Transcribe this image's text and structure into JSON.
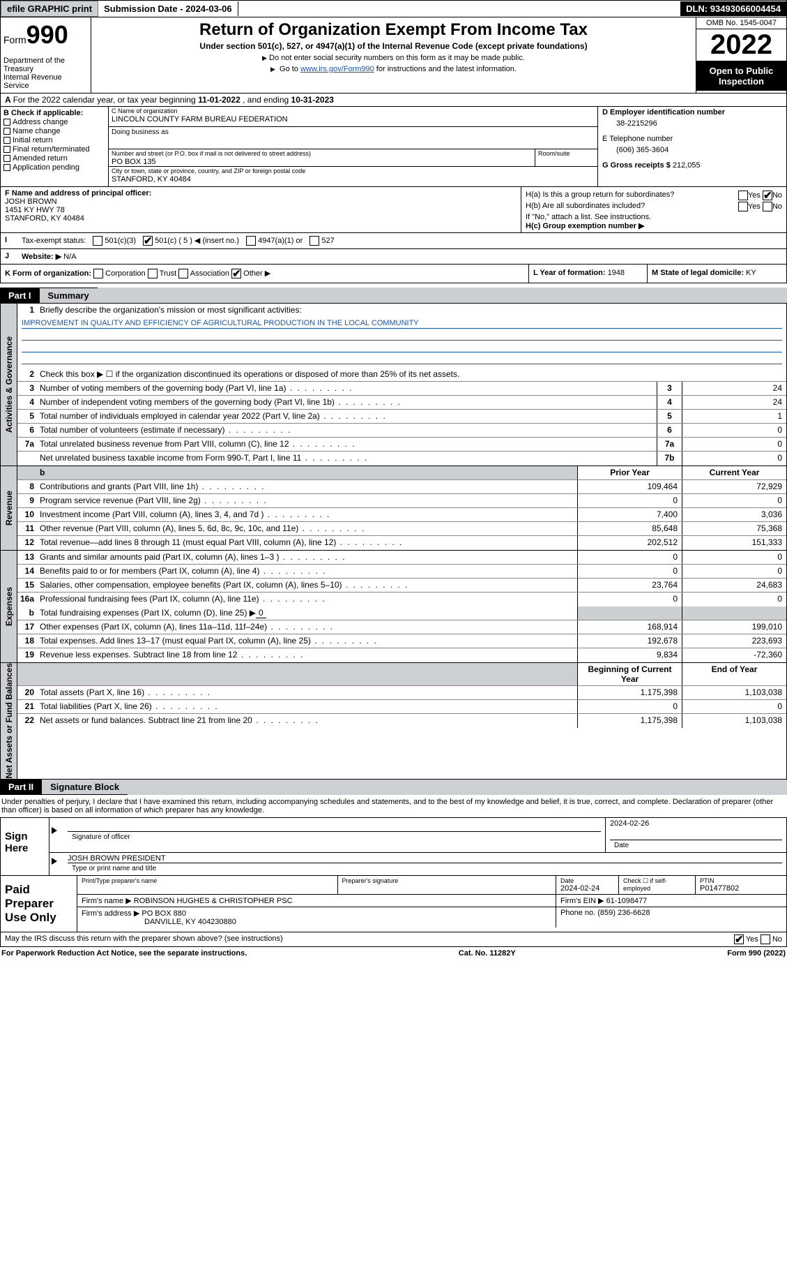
{
  "topbar": {
    "efile": "efile GRAPHIC print",
    "submission_label": "Submission Date - ",
    "submission_date": "2024-03-06",
    "dln_label": "DLN: ",
    "dln": "93493066004454"
  },
  "header": {
    "form_word": "Form",
    "form_no": "990",
    "dept": "Department of the Treasury",
    "irs": "Internal Revenue Service",
    "title": "Return of Organization Exempt From Income Tax",
    "sub": "Under section 501(c), 527, or 4947(a)(1) of the Internal Revenue Code (except private foundations)",
    "note1": "Do not enter social security numbers on this form as it may be made public.",
    "note2_a": "Go to ",
    "note2_link": "www.irs.gov/Form990",
    "note2_b": " for instructions and the latest information.",
    "omb": "OMB No. 1545-0047",
    "year": "2022",
    "open": "Open to Public Inspection"
  },
  "row_a": {
    "text_a": "For the 2022 calendar year, or tax year beginning ",
    "begin": "11-01-2022",
    "text_b": " , and ending ",
    "end": "10-31-2023"
  },
  "col_b": {
    "label": "B Check if applicable:",
    "items": [
      "Address change",
      "Name change",
      "Initial return",
      "Final return/terminated",
      "Amended return",
      "Application pending"
    ]
  },
  "col_c": {
    "name_lbl": "C Name of organization",
    "name": "LINCOLN COUNTY FARM BUREAU FEDERATION",
    "dba_lbl": "Doing business as",
    "addr_lbl": "Number and street (or P.O. box if mail is not delivered to street address)",
    "addr": "PO BOX 135",
    "room_lbl": "Room/suite",
    "city_lbl": "City or town, state or province, country, and ZIP or foreign postal code",
    "city": "STANFORD, KY  40484"
  },
  "col_d": {
    "ein_lbl": "D Employer identification number",
    "ein": "38-2215296",
    "phone_lbl": "E Telephone number",
    "phone": "(606) 365-3604",
    "gross_lbl": "G Gross receipts $ ",
    "gross": "212,055"
  },
  "col_f": {
    "lbl": "F Name and address of principal officer:",
    "name": "JOSH BROWN",
    "addr1": "1451 KY HWY 78",
    "addr2": "STANFORD, KY  40484"
  },
  "col_h": {
    "ha_lbl": "H(a)  Is this a group return for subordinates?",
    "hb_lbl": "H(b)  Are all subordinates included?",
    "hb_note": "If \"No,\" attach a list. See instructions.",
    "hc_lbl": "H(c)  Group exemption number ▶",
    "yes": "Yes",
    "no": "No"
  },
  "row_i": {
    "lbl": "Tax-exempt status:",
    "o1": "501(c)(3)",
    "o2": "501(c) ( 5 ) ◀ (insert no.)",
    "o3": "4947(a)(1) or",
    "o4": "527"
  },
  "row_j": {
    "lbl": "Website: ▶",
    "val": "N/A"
  },
  "row_k": {
    "lbl": "K Form of organization:",
    "opts": [
      "Corporation",
      "Trust",
      "Association",
      "Other ▶"
    ],
    "l_lbl": "L Year of formation: ",
    "l_val": "1948",
    "m_lbl": "M State of legal domicile: ",
    "m_val": "KY"
  },
  "part1": {
    "num": "Part I",
    "title": "Summary"
  },
  "sections": {
    "gov": "Activities & Governance",
    "rev": "Revenue",
    "exp": "Expenses",
    "net": "Net Assets or Fund Balances"
  },
  "s1": {
    "lbl": "Briefly describe the organization's mission or most significant activities:",
    "mission": "IMPROVEMENT IN QUALITY AND EFFICIENCY OF AGRICULTURAL PRODUCTION IN THE LOCAL COMMUNITY"
  },
  "s2": "Check this box ▶ ☐  if the organization discontinued its operations or disposed of more than 25% of its net assets.",
  "rows_gov": [
    {
      "n": "3",
      "t": "Number of voting members of the governing body (Part VI, line 1a)",
      "box": "3",
      "v": "24"
    },
    {
      "n": "4",
      "t": "Number of independent voting members of the governing body (Part VI, line 1b)",
      "box": "4",
      "v": "24"
    },
    {
      "n": "5",
      "t": "Total number of individuals employed in calendar year 2022 (Part V, line 2a)",
      "box": "5",
      "v": "1"
    },
    {
      "n": "6",
      "t": "Total number of volunteers (estimate if necessary)",
      "box": "6",
      "v": "0"
    },
    {
      "n": "7a",
      "t": "Total unrelated business revenue from Part VIII, column (C), line 12",
      "box": "7a",
      "v": "0"
    },
    {
      "n": "",
      "t": "Net unrelated business taxable income from Form 990-T, Part I, line 11",
      "box": "7b",
      "v": "0"
    }
  ],
  "col_hdrs": {
    "py": "Prior Year",
    "cy": "Current Year"
  },
  "rows_rev": [
    {
      "n": "8",
      "t": "Contributions and grants (Part VIII, line 1h)",
      "py": "109,464",
      "cy": "72,929"
    },
    {
      "n": "9",
      "t": "Program service revenue (Part VIII, line 2g)",
      "py": "0",
      "cy": "0"
    },
    {
      "n": "10",
      "t": "Investment income (Part VIII, column (A), lines 3, 4, and 7d )",
      "py": "7,400",
      "cy": "3,036"
    },
    {
      "n": "11",
      "t": "Other revenue (Part VIII, column (A), lines 5, 6d, 8c, 9c, 10c, and 11e)",
      "py": "85,648",
      "cy": "75,368"
    },
    {
      "n": "12",
      "t": "Total revenue—add lines 8 through 11 (must equal Part VIII, column (A), line 12)",
      "py": "202,512",
      "cy": "151,333"
    }
  ],
  "rows_exp": [
    {
      "n": "13",
      "t": "Grants and similar amounts paid (Part IX, column (A), lines 1–3 )",
      "py": "0",
      "cy": "0"
    },
    {
      "n": "14",
      "t": "Benefits paid to or for members (Part IX, column (A), line 4)",
      "py": "0",
      "cy": "0"
    },
    {
      "n": "15",
      "t": "Salaries, other compensation, employee benefits (Part IX, column (A), lines 5–10)",
      "py": "23,764",
      "cy": "24,683"
    },
    {
      "n": "16a",
      "t": "Professional fundraising fees (Part IX, column (A), line 11e)",
      "py": "0",
      "cy": "0"
    }
  ],
  "row_16b": {
    "n": "b",
    "t": "Total fundraising expenses (Part IX, column (D), line 25) ▶",
    "v": "0"
  },
  "rows_exp2": [
    {
      "n": "17",
      "t": "Other expenses (Part IX, column (A), lines 11a–11d, 11f–24e)",
      "py": "168,914",
      "cy": "199,010"
    },
    {
      "n": "18",
      "t": "Total expenses. Add lines 13–17 (must equal Part IX, column (A), line 25)",
      "py": "192,678",
      "cy": "223,693"
    },
    {
      "n": "19",
      "t": "Revenue less expenses. Subtract line 18 from line 12",
      "py": "9,834",
      "cy": "-72,360"
    }
  ],
  "col_hdrs2": {
    "b": "Beginning of Current Year",
    "e": "End of Year"
  },
  "rows_net": [
    {
      "n": "20",
      "t": "Total assets (Part X, line 16)",
      "py": "1,175,398",
      "cy": "1,103,038"
    },
    {
      "n": "21",
      "t": "Total liabilities (Part X, line 26)",
      "py": "0",
      "cy": "0"
    },
    {
      "n": "22",
      "t": "Net assets or fund balances. Subtract line 21 from line 20",
      "py": "1,175,398",
      "cy": "1,103,038"
    }
  ],
  "part2": {
    "num": "Part II",
    "title": "Signature Block"
  },
  "sig_decl": "Under penalties of perjury, I declare that I have examined this return, including accompanying schedules and statements, and to the best of my knowledge and belief, it is true, correct, and complete. Declaration of preparer (other than officer) is based on all information of which preparer has any knowledge.",
  "sig": {
    "here": "Sign Here",
    "officer_lbl": "Signature of officer",
    "date_lbl": "Date",
    "date": "2024-02-26",
    "name": "JOSH BROWN  PRESIDENT",
    "name_lbl": "Type or print name and title"
  },
  "prep": {
    "title": "Paid Preparer Use Only",
    "h1": "Print/Type preparer's name",
    "h2": "Preparer's signature",
    "h3": "Date",
    "date": "2024-02-24",
    "h4": "Check ☐ if self-employed",
    "h5": "PTIN",
    "ptin": "P01477802",
    "firm_name_lbl": "Firm's name     ▶",
    "firm_name": "ROBINSON HUGHES & CHRISTOPHER PSC",
    "firm_ein_lbl": "Firm's EIN ▶",
    "firm_ein": "61-1098477",
    "firm_addr_lbl": "Firm's address ▶",
    "firm_addr1": "PO BOX 880",
    "firm_addr2": "DANVILLE, KY  404230880",
    "phone_lbl": "Phone no. ",
    "phone": "(859) 236-6628"
  },
  "footer": {
    "q": "May the IRS discuss this return with the preparer shown above? (see instructions)",
    "yes": "Yes",
    "no": "No",
    "pra": "For Paperwork Reduction Act Notice, see the separate instructions.",
    "cat": "Cat. No. 11282Y",
    "form": "Form 990 (2022)"
  },
  "colors": {
    "shade": "#cdd0d3",
    "link": "#1155cc",
    "black": "#000000"
  }
}
